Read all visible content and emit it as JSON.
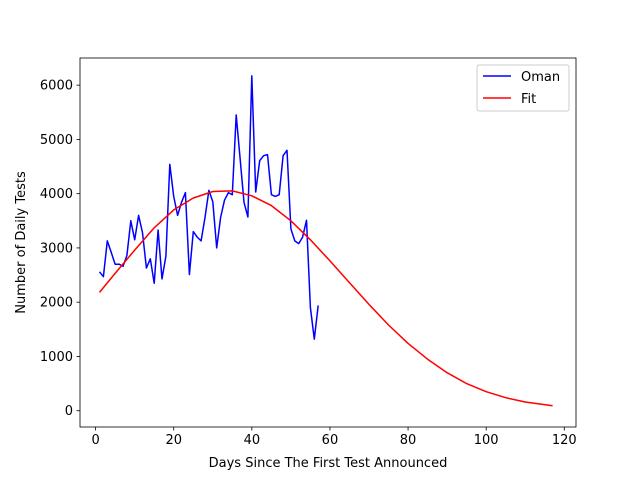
{
  "chart_data": {
    "type": "line",
    "xlabel": "Days Since The First Test Announced",
    "ylabel": "Number of Daily Tests",
    "xlim": [
      -4,
      123
    ],
    "ylim": [
      -300,
      6500
    ],
    "xticks": [
      0,
      20,
      40,
      60,
      80,
      100,
      120
    ],
    "yticks": [
      0,
      1000,
      2000,
      3000,
      4000,
      5000,
      6000
    ],
    "grid": false,
    "legend_position": "top-right",
    "series": [
      {
        "name": "Oman",
        "color": "#0000ff",
        "x": [
          1,
          2,
          3,
          4,
          5,
          6,
          7,
          8,
          9,
          10,
          11,
          12,
          13,
          14,
          15,
          16,
          17,
          18,
          19,
          20,
          21,
          22,
          23,
          24,
          25,
          26,
          27,
          28,
          29,
          30,
          31,
          32,
          33,
          34,
          35,
          36,
          37,
          38,
          39,
          40,
          41,
          42,
          43,
          44,
          45,
          46,
          47,
          48,
          49,
          50,
          51,
          52,
          53,
          54,
          55,
          56,
          57
        ],
        "y": [
          2560,
          2470,
          3130,
          2920,
          2700,
          2700,
          2660,
          2860,
          3500,
          3150,
          3600,
          3280,
          2630,
          2800,
          2350,
          3330,
          2430,
          2850,
          4540,
          3950,
          3600,
          3840,
          4020,
          2510,
          3300,
          3200,
          3130,
          3560,
          4060,
          3850,
          3000,
          3560,
          3880,
          4020,
          3980,
          5450,
          4650,
          3840,
          3570,
          6170,
          4030,
          4610,
          4700,
          4720,
          3980,
          3950,
          3980,
          4700,
          4800,
          3350,
          3130,
          3080,
          3200,
          3510,
          1900,
          1320,
          1940
        ]
      },
      {
        "name": "Fit",
        "color": "#ff0000",
        "x": [
          1,
          5,
          10,
          15,
          20,
          25,
          30,
          35,
          40,
          45,
          50,
          55,
          60,
          65,
          70,
          75,
          80,
          85,
          90,
          95,
          100,
          105,
          110,
          117
        ],
        "y": [
          2180,
          2530,
          2960,
          3370,
          3700,
          3920,
          4040,
          4050,
          3960,
          3780,
          3500,
          3150,
          2760,
          2360,
          1960,
          1580,
          1240,
          950,
          700,
          500,
          350,
          240,
          160,
          90
        ]
      }
    ]
  }
}
